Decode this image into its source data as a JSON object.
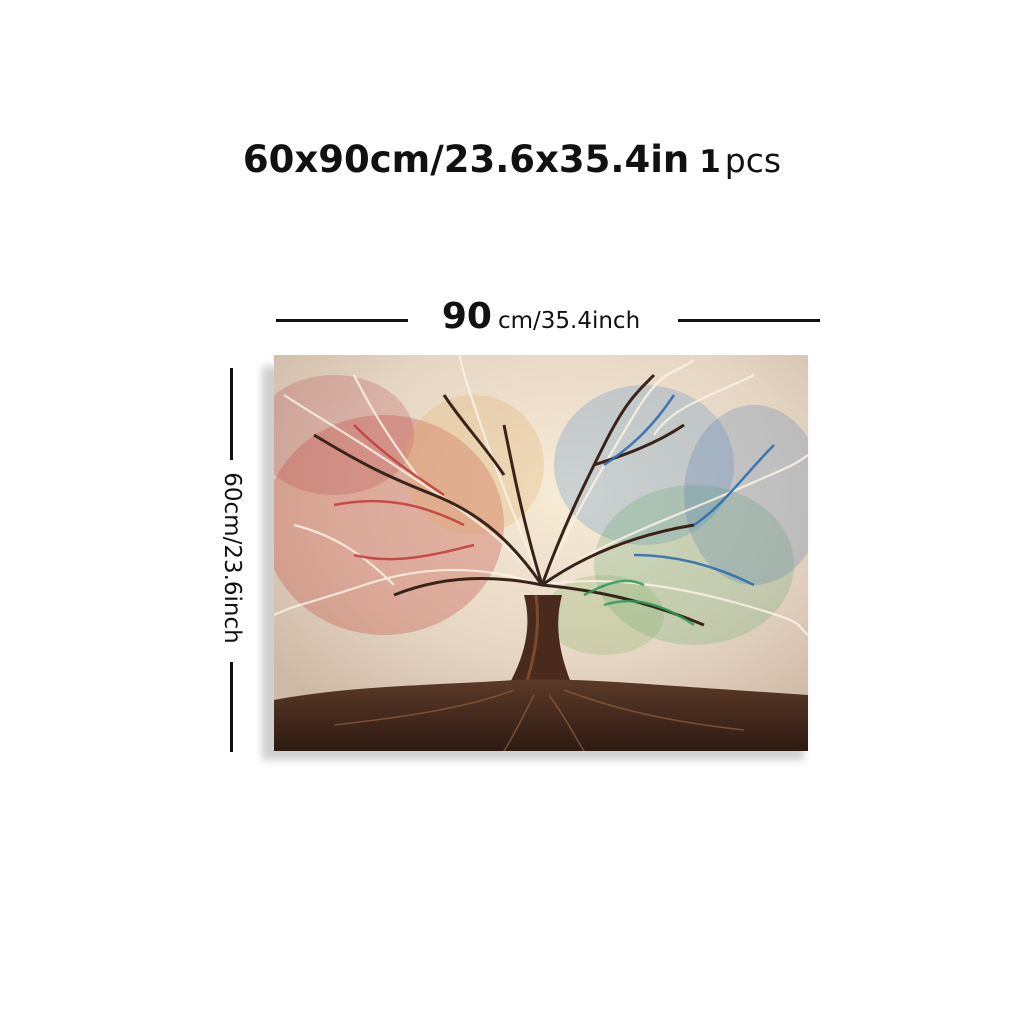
{
  "title": {
    "main": "60x90cm/23.6x35.4in",
    "count": "1",
    "unit": "pcs"
  },
  "dimensions": {
    "width_value": "90",
    "width_rest": "cm/35.4inch",
    "height_label": "60cm/23.6inch"
  },
  "artwork": {
    "subject": "tree-of-life-painting"
  }
}
